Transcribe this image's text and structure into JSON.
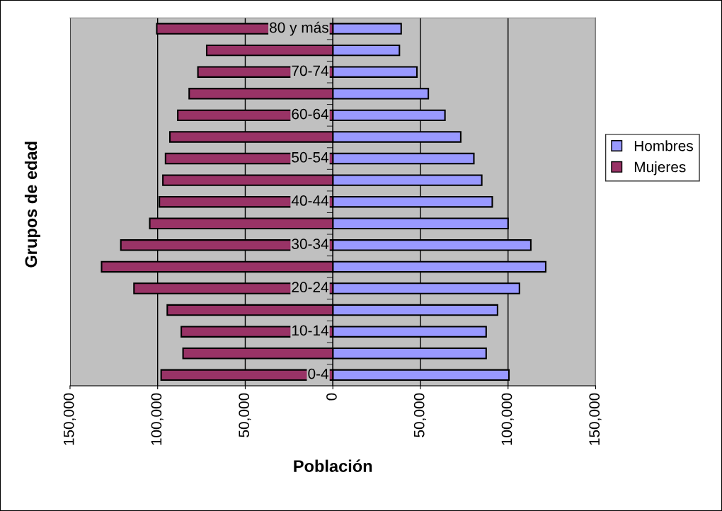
{
  "chart_data": {
    "type": "bar",
    "orientation": "horizontal",
    "xlabel": "Población",
    "ylabel": "Grupos de edad",
    "categories": [
      "80 y más",
      null,
      "70-74",
      null,
      "60-64",
      null,
      "50-54",
      null,
      "40-44",
      null,
      "30-34",
      null,
      "20-24",
      null,
      "10-14",
      null,
      "0-4"
    ],
    "series": [
      {
        "name": "Hombres",
        "color": "#9999ff",
        "values": [
          39000,
          38000,
          48000,
          54500,
          64000,
          73000,
          80500,
          85000,
          91000,
          100000,
          113000,
          121500,
          106500,
          94000,
          87500,
          87500,
          100500
        ]
      },
      {
        "name": "Mujeres",
        "color": "#993366",
        "values": [
          -100500,
          -72000,
          -77000,
          -82000,
          -88500,
          -93000,
          -95500,
          -97000,
          -99000,
          -104500,
          -121000,
          -132000,
          -113500,
          -94500,
          -86500,
          -85500,
          -98000
        ]
      }
    ],
    "xlim": [
      -150000,
      150000
    ],
    "xticks": [
      {
        "value": -150000,
        "label": "150,000"
      },
      {
        "value": -100000,
        "label": "100,000"
      },
      {
        "value": -50000,
        "label": "50,000"
      },
      0,
      {
        "value": 50000,
        "label": "50,000"
      },
      {
        "value": 100000,
        "label": "100,000"
      },
      {
        "value": 150000,
        "label": "150,000"
      }
    ],
    "grid": "x",
    "legend": "right",
    "stacked": true
  }
}
